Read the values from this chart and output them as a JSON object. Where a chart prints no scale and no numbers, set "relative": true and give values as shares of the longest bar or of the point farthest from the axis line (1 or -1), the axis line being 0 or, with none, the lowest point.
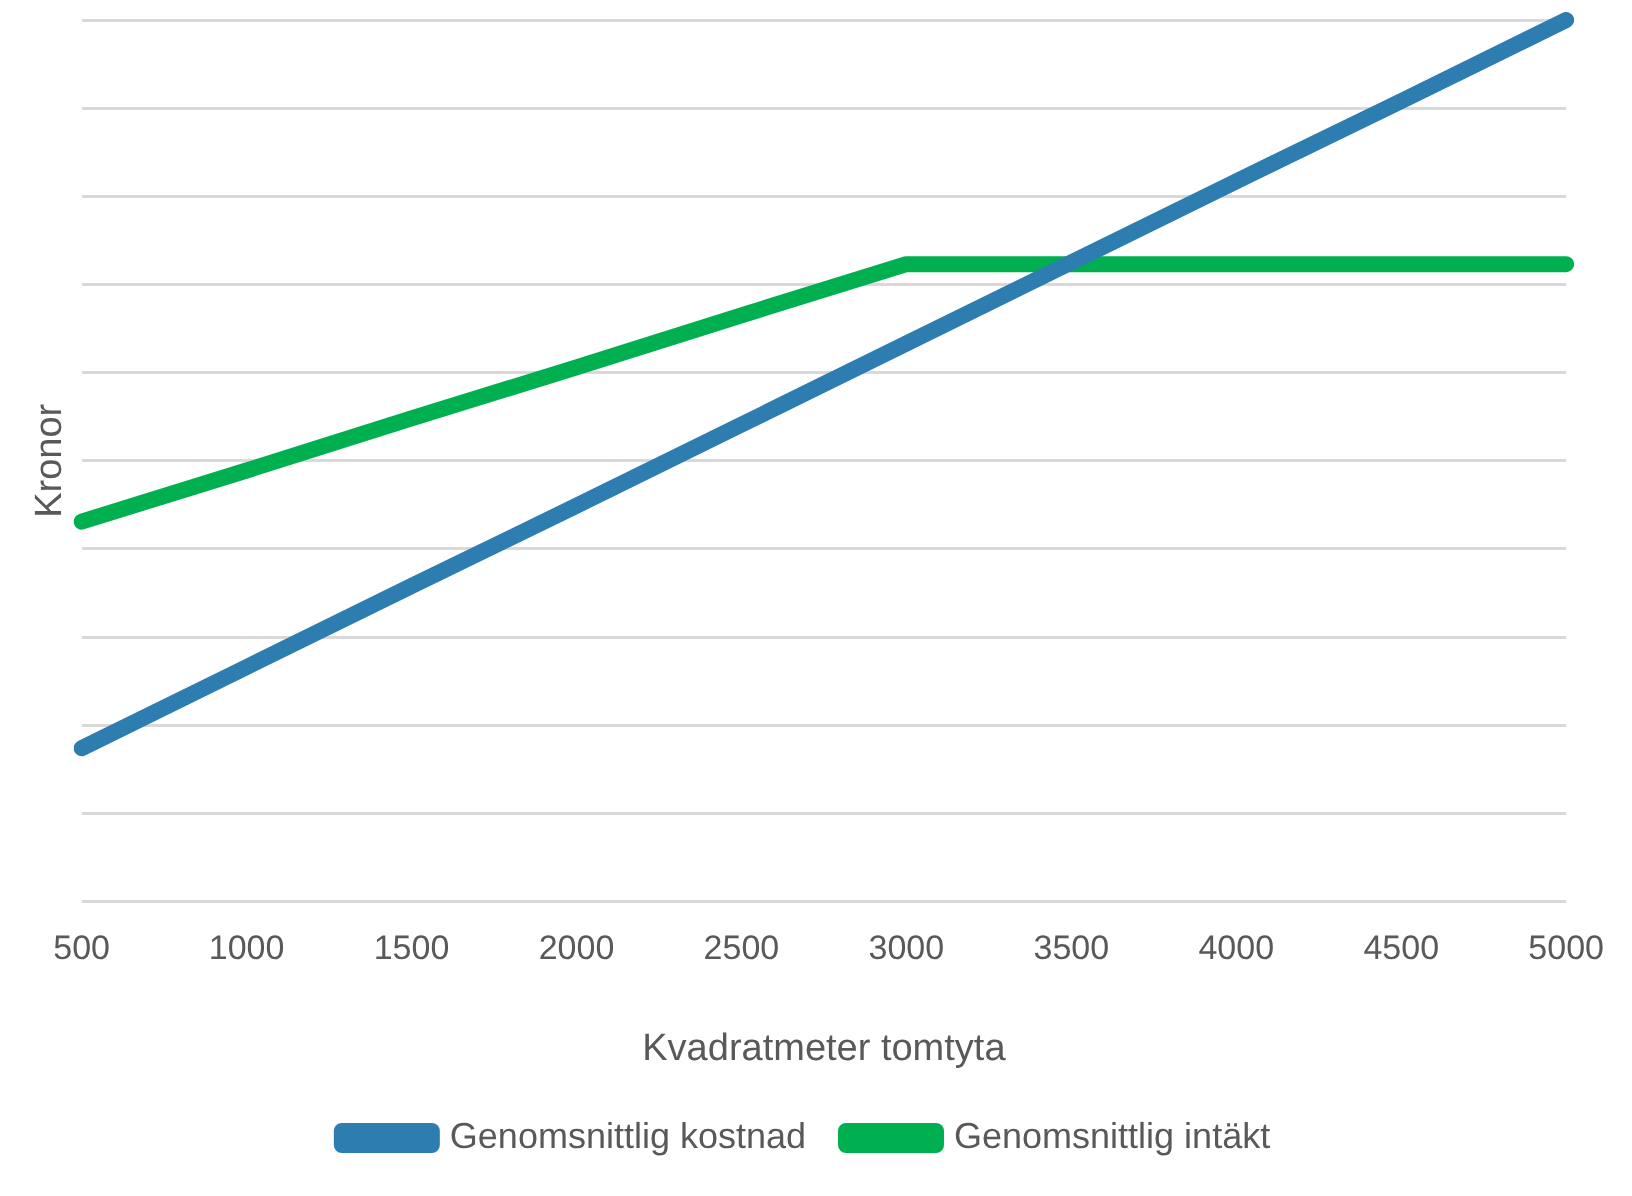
{
  "chart_data": {
    "type": "line",
    "xlabel": "Kvadratmeter tomtyta",
    "ylabel": "Kronor",
    "relative": true,
    "grid": "y",
    "legend": "bottom",
    "marker": "none",
    "line_style": "solid",
    "categories": [
      "500",
      "1000",
      "1500",
      "2000",
      "2500",
      "3000",
      "3500",
      "4000",
      "4500",
      "5000"
    ],
    "series": [
      {
        "name": "Genomsnittlig kostnad",
        "color": "#2e7db0",
        "values": [
          0.174,
          0.266,
          0.358,
          0.449,
          0.541,
          0.633,
          0.725,
          0.817,
          0.908,
          1
        ]
      },
      {
        "name": "Genomsnittlig intäkt",
        "color": "#00b050",
        "values": [
          0.431,
          0.489,
          0.548,
          0.606,
          0.665,
          0.723,
          0.723,
          0.723,
          0.723,
          0.723
        ]
      }
    ]
  }
}
